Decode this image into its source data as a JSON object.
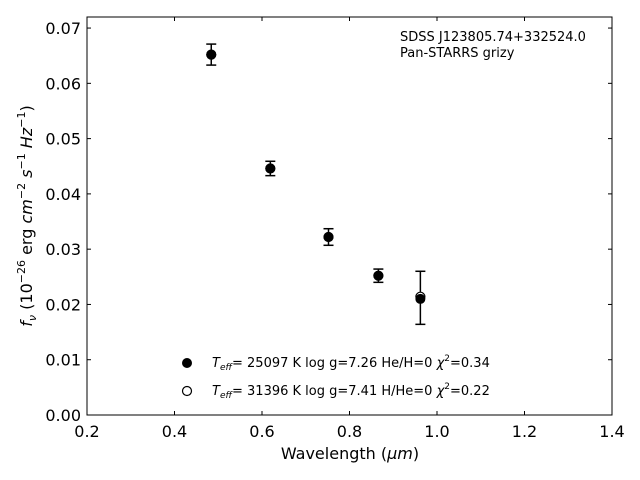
{
  "chart_data": {
    "type": "scatter",
    "title": "",
    "xlabel_main": "Wavelength (",
    "xlabel_unit": "μm",
    "xlabel_close": ")",
    "ylabel_f": "f",
    "ylabel_nu": "ν",
    "ylabel_rest1": " (10",
    "ylabel_exp1": "−26",
    "ylabel_rest2": " erg ",
    "ylabel_cm": "cm",
    "ylabel_exp2": "−2",
    "ylabel_s": " s",
    "ylabel_exp3": "−1",
    "ylabel_hz": " Hz",
    "ylabel_exp4": "−1",
    "ylabel_close": ")",
    "xlim": [
      0.2,
      1.4
    ],
    "ylim": [
      0.0,
      0.072
    ],
    "xticks": [
      "0.2",
      "0.4",
      "0.6",
      "0.8",
      "1.0",
      "1.2",
      "1.4"
    ],
    "xtick_values": [
      0.2,
      0.4,
      0.6,
      0.8,
      1.0,
      1.2,
      1.4
    ],
    "yticks": [
      "0.00",
      "0.01",
      "0.02",
      "0.03",
      "0.04",
      "0.05",
      "0.06",
      "0.07"
    ],
    "ytick_values": [
      0.0,
      0.01,
      0.02,
      0.03,
      0.04,
      0.05,
      0.06,
      0.07
    ],
    "grid": false,
    "annotation": {
      "line1": "SDSS J123805.74+332524.0",
      "line2": "Pan-STARRS grizy"
    },
    "observed": {
      "x": [
        0.484,
        0.619,
        0.752,
        0.866,
        0.962
      ],
      "y": [
        0.0652,
        0.0446,
        0.0322,
        0.0252,
        0.0212
      ],
      "yerr": [
        0.0019,
        0.0013,
        0.0015,
        0.0012,
        0.0048
      ]
    },
    "series": [
      {
        "marker": "filled-circle",
        "color": "#000000",
        "x": [
          0.484,
          0.619,
          0.752,
          0.866,
          0.962
        ],
        "y": [
          0.0652,
          0.0446,
          0.0322,
          0.0252,
          0.021
        ],
        "label": {
          "t": "T",
          "eff": "eff",
          "rest": "= 25097 K  log g=7.26  He/H=0  ",
          "chi": "χ",
          "sq": "2",
          "val": "=0.34"
        }
      },
      {
        "marker": "open-circle",
        "color": "#000000",
        "x": [
          0.484,
          0.619,
          0.752,
          0.866,
          0.962
        ],
        "y": [
          0.0652,
          0.0446,
          0.0322,
          0.0252,
          0.0214
        ],
        "label": {
          "t": "T",
          "eff": "eff",
          "rest": "= 31396 K  log g=7.41  H/He=0  ",
          "chi": "χ",
          "sq": "2",
          "val": "=0.22"
        }
      }
    ],
    "legend_position": "lower-center"
  }
}
